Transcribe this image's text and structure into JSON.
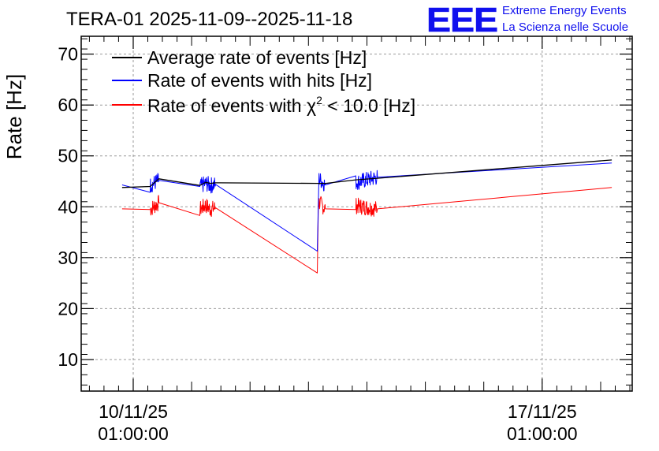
{
  "header": {
    "title": "TERA-01 2025-11-09--2025-11-18",
    "logo_text": "EEE",
    "logo_line1": "Extreme Energy Events",
    "logo_line2": "La Scienza nelle Scuole",
    "logo_color": "#1010ee"
  },
  "chart_data": {
    "type": "line",
    "title": "TERA-01 2025-11-09--2025-11-18",
    "xlabel": "",
    "ylabel": "Rate [Hz]",
    "x_unit": "days since 2025-11-09 00:00",
    "xlim": [
      0.15,
      9.58
    ],
    "ylim": [
      3.8,
      73.5
    ],
    "y_ticks": [
      10,
      20,
      30,
      40,
      50,
      60,
      70
    ],
    "x_ticks": [
      {
        "x": 1.04,
        "date": "10/11/25",
        "time": "01:00:00"
      },
      {
        "x": 8.04,
        "date": "17/11/25",
        "time": "01:00:00"
      }
    ],
    "grid": true,
    "legend_position": "top-left",
    "legend": [
      {
        "label": "Average rate of events [Hz]",
        "color": "#000000"
      },
      {
        "label": "Rate of events with hits [Hz]",
        "color": "#0000ff"
      },
      {
        "label_prefix": "Rate of events with ",
        "label_symbol": "χ",
        "label_sup": "2",
        "label_suffix": " < 10.0 [Hz]",
        "color": "#ff0000"
      }
    ],
    "series": [
      {
        "name": "Average rate of events [Hz]",
        "color": "#000000",
        "noise": 0,
        "x": [
          0.85,
          1.33,
          1.48,
          2.18,
          2.28,
          2.36,
          2.45,
          2.52,
          4.25,
          4.33,
          4.85,
          5.22,
          9.23
        ],
        "y": [
          43.8,
          44.0,
          45.5,
          44.2,
          44.8,
          44.6,
          44.7,
          44.7,
          44.6,
          44.6,
          45.3,
          45.6,
          49.2
        ]
      },
      {
        "name": "Rate of events with hits [Hz]",
        "color": "#0000ff",
        "noise": 1.6,
        "x": [
          0.85,
          1.33,
          1.48,
          2.18,
          2.28,
          2.36,
          2.45,
          4.19,
          4.22,
          4.33,
          4.85,
          5.22,
          9.23
        ],
        "y": [
          44.3,
          44.2,
          45.2,
          44.0,
          44.6,
          44.2,
          44.4,
          31.3,
          45.5,
          44.3,
          44.8,
          45.8,
          48.6
        ]
      },
      {
        "name": "Rate of events with chi2 < 10.0 [Hz]",
        "color": "#ff0000",
        "noise": 1.6,
        "x": [
          0.85,
          1.33,
          1.48,
          2.18,
          2.28,
          2.36,
          2.45,
          4.19,
          4.21,
          4.33,
          4.85,
          5.22,
          9.23
        ],
        "y": [
          39.6,
          39.5,
          40.8,
          39.5,
          40.3,
          39.5,
          39.8,
          27.0,
          41.0,
          39.6,
          40.2,
          39.6,
          43.8
        ]
      }
    ]
  }
}
